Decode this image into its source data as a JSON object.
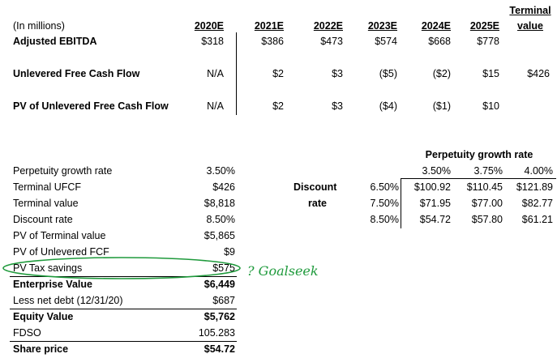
{
  "top_table": {
    "units_label": "(In millions)",
    "year_headers": [
      "2020E",
      "2021E",
      "2022E",
      "2023E",
      "2024E",
      "2025E"
    ],
    "terminal_header_line1": "Terminal",
    "terminal_header_line2": "value",
    "rows": [
      {
        "label": "Adjusted EBITDA",
        "values": [
          "$318",
          "$386",
          "$473",
          "$574",
          "$668",
          "$778"
        ],
        "terminal": ""
      },
      {
        "label": "Unlevered Free Cash Flow",
        "values": [
          "N/A",
          "$2",
          "$3",
          "($5)",
          "($2)",
          "$15"
        ],
        "terminal": "$426"
      },
      {
        "label": "PV of Unlevered Free Cash Flow",
        "values": [
          "N/A",
          "$2",
          "$3",
          "($4)",
          "($1)",
          "$10"
        ],
        "terminal": ""
      }
    ]
  },
  "valuation": {
    "rows": [
      {
        "label": "Perpetuity growth rate",
        "value": "3.50%"
      },
      {
        "label": "Terminal UFCF",
        "value": "$426"
      },
      {
        "label": "Terminal value",
        "value": "$8,818"
      },
      {
        "label": "Discount rate",
        "value": "8.50%"
      },
      {
        "label": "PV of Terminal value",
        "value": "$5,865"
      },
      {
        "label": "PV of Unlevered FCF",
        "value": "$9"
      },
      {
        "label": "PV Tax savings",
        "value": "$575"
      },
      {
        "label": "Enterprise Value",
        "value": "$6,449"
      },
      {
        "label": "Less net debt (12/31/20)",
        "value": "$687"
      },
      {
        "label": "Equity Value",
        "value": "$5,762"
      },
      {
        "label": "FDSO",
        "value": "105.283"
      },
      {
        "label": "Share price",
        "value": "$54.72"
      }
    ]
  },
  "sensitivity": {
    "title": "Perpetuity growth rate",
    "growth_rates": [
      "3.50%",
      "3.75%",
      "4.00%"
    ],
    "row_label_line1": "Discount",
    "row_label_line2": "rate",
    "discount_rates": [
      "6.50%",
      "7.50%",
      "8.50%"
    ],
    "cells": [
      [
        "$100.92",
        "$110.45",
        "$121.89"
      ],
      [
        "$71.95",
        "$77.00",
        "$82.77"
      ],
      [
        "$54.72",
        "$57.80",
        "$61.21"
      ]
    ]
  },
  "annotation": {
    "note": "? Goalseek",
    "ink_color": "#1f9a3c"
  }
}
